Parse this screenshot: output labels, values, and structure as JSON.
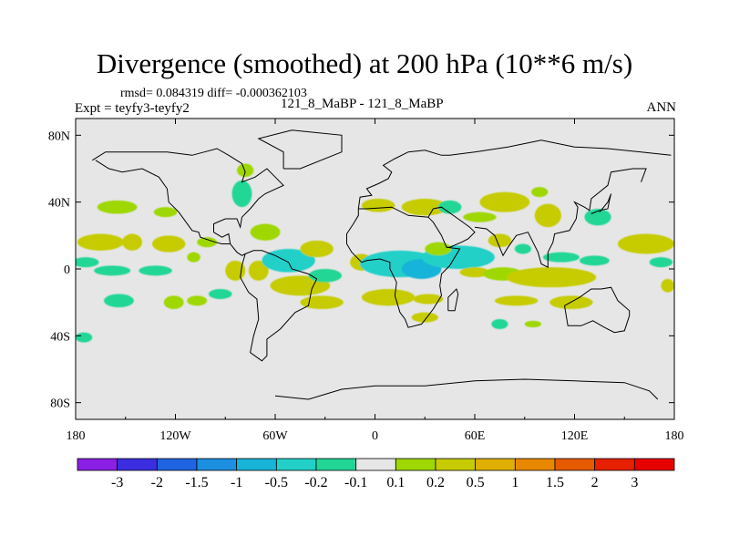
{
  "chart_data": {
    "type": "heatmap",
    "title": "Divergence (smoothed) at 200 hPa (10**6 m/s)",
    "stats": "rmsd= 0.084319 diff= -0.000362103",
    "left_label": "Expt = teyfy3-teyfy2",
    "center_label": "121_8_MaBP - 121_8_MaBP",
    "right_label": "ANN",
    "xlim": [
      -180,
      180
    ],
    "ylim": [
      -90,
      90
    ],
    "x_ticks": [
      {
        "value": -180,
        "label": "180"
      },
      {
        "value": -120,
        "label": "120W"
      },
      {
        "value": -60,
        "label": "60W"
      },
      {
        "value": 0,
        "label": "0"
      },
      {
        "value": 60,
        "label": "60E"
      },
      {
        "value": 120,
        "label": "120E"
      },
      {
        "value": 180,
        "label": "180"
      }
    ],
    "y_ticks": [
      {
        "value": 80,
        "label": "80N"
      },
      {
        "value": 40,
        "label": "40N"
      },
      {
        "value": 0,
        "label": "0"
      },
      {
        "value": -40,
        "label": "40S"
      },
      {
        "value": -80,
        "label": "80S"
      }
    ],
    "colorbar": {
      "labels": [
        "-3",
        "-2",
        "-1.5",
        "-1",
        "-0.5",
        "-0.2",
        "-0.1",
        "0.1",
        "0.2",
        "0.5",
        "1",
        "1.5",
        "2",
        "3"
      ],
      "colors": [
        "#8a1fe6",
        "#3a2ee0",
        "#1f64e0",
        "#1c8fe0",
        "#18b4d8",
        "#22d0c8",
        "#22d696",
        "#e6e6e6",
        "#9ed800",
        "#c6cc00",
        "#e0b000",
        "#e88800",
        "#e65a00",
        "#e62000",
        "#e60000"
      ]
    },
    "blobs": [
      {
        "lon": -155,
        "lat": 37,
        "rlon": 12,
        "rlat": 4,
        "value": 0.15
      },
      {
        "lon": -126,
        "lat": 34,
        "rlon": 7,
        "rlat": 3,
        "value": 0.15
      },
      {
        "lon": -165,
        "lat": 16,
        "rlon": 14,
        "rlat": 5,
        "value": 0.3
      },
      {
        "lon": -146,
        "lat": 16,
        "rlon": 6,
        "rlat": 5,
        "value": 0.3
      },
      {
        "lon": -124,
        "lat": 15,
        "rlon": 10,
        "rlat": 5,
        "value": 0.25
      },
      {
        "lon": -101,
        "lat": 16,
        "rlon": 6,
        "rlat": 3,
        "value": 0.15
      },
      {
        "lon": -174,
        "lat": 4,
        "rlon": 8,
        "rlat": 3,
        "value": -0.15
      },
      {
        "lon": -158,
        "lat": -1,
        "rlon": 11,
        "rlat": 3,
        "value": -0.15
      },
      {
        "lon": -132,
        "lat": -1,
        "rlon": 10,
        "rlat": 3,
        "value": -0.15
      },
      {
        "lon": -109,
        "lat": 7,
        "rlon": 4,
        "rlat": 3,
        "value": 0.15
      },
      {
        "lon": -154,
        "lat": -19,
        "rlon": 9,
        "rlat": 4,
        "value": -0.15
      },
      {
        "lon": -121,
        "lat": -20,
        "rlon": 6,
        "rlat": 4,
        "value": 0.15
      },
      {
        "lon": -107,
        "lat": -19,
        "rlon": 6,
        "rlat": 3,
        "value": 0.15
      },
      {
        "lon": -175,
        "lat": -41,
        "rlon": 5,
        "rlat": 3,
        "value": -0.15
      },
      {
        "lon": -93,
        "lat": -15,
        "rlon": 7,
        "rlat": 3,
        "value": -0.15
      },
      {
        "lon": -84,
        "lat": -1,
        "rlon": 6,
        "rlat": 6,
        "value": 0.3
      },
      {
        "lon": -70,
        "lat": -1,
        "rlon": 6,
        "rlat": 6,
        "value": 0.25
      },
      {
        "lon": -78,
        "lat": 59,
        "rlon": 5,
        "rlat": 4,
        "value": 0.15
      },
      {
        "lon": -80,
        "lat": 45,
        "rlon": 6,
        "rlat": 8,
        "value": -0.15
      },
      {
        "lon": -66,
        "lat": 22,
        "rlon": 9,
        "rlat": 5,
        "value": 0.15
      },
      {
        "lon": -52,
        "lat": 5,
        "rlon": 16,
        "rlat": 7,
        "value": -0.3
      },
      {
        "lon": -35,
        "lat": 12,
        "rlon": 10,
        "rlat": 5,
        "value": 0.25
      },
      {
        "lon": -45,
        "lat": -10,
        "rlon": 18,
        "rlat": 6,
        "value": 0.2
      },
      {
        "lon": -30,
        "lat": -4,
        "rlon": 10,
        "rlat": 4,
        "value": -0.15
      },
      {
        "lon": -32,
        "lat": -20,
        "rlon": 13,
        "rlat": 4,
        "value": 0.25
      },
      {
        "lon": -8,
        "lat": 4,
        "rlon": 7,
        "rlat": 5,
        "value": 0.25
      },
      {
        "lon": 15,
        "lat": 3,
        "rlon": 24,
        "rlat": 8,
        "value": -0.35
      },
      {
        "lon": 28,
        "lat": 0,
        "rlon": 12,
        "rlat": 6,
        "value": -0.6
      },
      {
        "lon": 50,
        "lat": 7,
        "rlon": 22,
        "rlat": 7,
        "value": -0.3
      },
      {
        "lon": 8,
        "lat": -17,
        "rlon": 16,
        "rlat": 5,
        "value": 0.25
      },
      {
        "lon": 32,
        "lat": -18,
        "rlon": 9,
        "rlat": 3,
        "value": 0.2
      },
      {
        "lon": 30,
        "lat": -29,
        "rlon": 8,
        "rlat": 3,
        "value": 0.25
      },
      {
        "lon": 2,
        "lat": 38,
        "rlon": 10,
        "rlat": 4,
        "value": 0.25
      },
      {
        "lon": 30,
        "lat": 37,
        "rlon": 14,
        "rlat": 5,
        "value": 0.25
      },
      {
        "lon": 45,
        "lat": 37,
        "rlon": 7,
        "rlat": 4,
        "value": -0.15
      },
      {
        "lon": 63,
        "lat": 31,
        "rlon": 10,
        "rlat": 3,
        "value": 0.15
      },
      {
        "lon": 38,
        "lat": 12,
        "rlon": 8,
        "rlat": 4,
        "value": 0.15
      },
      {
        "lon": 78,
        "lat": 40,
        "rlon": 15,
        "rlat": 6,
        "value": 0.25
      },
      {
        "lon": 104,
        "lat": 32,
        "rlon": 8,
        "rlat": 7,
        "value": 0.25
      },
      {
        "lon": 99,
        "lat": 46,
        "rlon": 5,
        "rlat": 3,
        "value": 0.15
      },
      {
        "lon": 134,
        "lat": 31,
        "rlon": 8,
        "rlat": 5,
        "value": -0.15
      },
      {
        "lon": 75,
        "lat": 17,
        "rlon": 7,
        "rlat": 4,
        "value": 0.25
      },
      {
        "lon": 89,
        "lat": 12,
        "rlon": 5,
        "rlat": 3,
        "value": -0.15
      },
      {
        "lon": 60,
        "lat": -2,
        "rlon": 9,
        "rlat": 3,
        "value": 0.3
      },
      {
        "lon": 77,
        "lat": -3,
        "rlon": 12,
        "rlat": 4,
        "value": 0.15
      },
      {
        "lon": 106,
        "lat": -5,
        "rlon": 27,
        "rlat": 6,
        "value": 0.3
      },
      {
        "lon": 112,
        "lat": 7,
        "rlon": 11,
        "rlat": 3,
        "value": -0.15
      },
      {
        "lon": 132,
        "lat": 5,
        "rlon": 9,
        "rlat": 3,
        "value": -0.15
      },
      {
        "lon": 163,
        "lat": 15,
        "rlon": 17,
        "rlat": 6,
        "value": 0.4
      },
      {
        "lon": 172,
        "lat": 4,
        "rlon": 7,
        "rlat": 3,
        "value": -0.15
      },
      {
        "lon": 85,
        "lat": -19,
        "rlon": 13,
        "rlat": 3,
        "value": 0.25
      },
      {
        "lon": 118,
        "lat": -20,
        "rlon": 13,
        "rlat": 4,
        "value": 0.25
      },
      {
        "lon": 75,
        "lat": -33,
        "rlon": 5,
        "rlat": 3,
        "value": -0.15
      },
      {
        "lon": 95,
        "lat": -33,
        "rlon": 5,
        "rlat": 2,
        "value": 0.15
      },
      {
        "lon": 176,
        "lat": -10,
        "rlon": 4,
        "rlat": 4,
        "value": 0.25
      }
    ],
    "coastlines": [
      [
        [
          -170,
          65
        ],
        [
          -162,
          70
        ],
        [
          -140,
          70
        ],
        [
          -125,
          70
        ],
        [
          -110,
          68
        ],
        [
          -95,
          72
        ],
        [
          -88,
          68
        ],
        [
          -80,
          63
        ],
        [
          -78,
          58
        ],
        [
          -80,
          52
        ],
        [
          -72,
          55
        ],
        [
          -65,
          60
        ],
        [
          -60,
          55
        ],
        [
          -55,
          50
        ],
        [
          -66,
          45
        ],
        [
          -70,
          42
        ],
        [
          -75,
          36
        ],
        [
          -80,
          31
        ],
        [
          -81,
          25
        ],
        [
          -83,
          30
        ],
        [
          -90,
          30
        ],
        [
          -97,
          27
        ],
        [
          -97,
          22
        ],
        [
          -92,
          19
        ],
        [
          -88,
          21
        ],
        [
          -87,
          15
        ],
        [
          -83,
          10
        ],
        [
          -80,
          8
        ],
        [
          -78,
          9
        ]
      ],
      [
        [
          -78,
          9
        ],
        [
          -80,
          2
        ],
        [
          -81,
          -5
        ],
        [
          -76,
          -14
        ],
        [
          -71,
          -18
        ],
        [
          -70,
          -30
        ],
        [
          -73,
          -40
        ],
        [
          -75,
          -50
        ],
        [
          -68,
          -55
        ],
        [
          -65,
          -52
        ],
        [
          -65,
          -42
        ],
        [
          -57,
          -36
        ],
        [
          -48,
          -26
        ],
        [
          -40,
          -22
        ],
        [
          -38,
          -12
        ],
        [
          -35,
          -6
        ],
        [
          -40,
          -3
        ],
        [
          -50,
          0
        ],
        [
          -52,
          4
        ],
        [
          -60,
          8
        ],
        [
          -68,
          11
        ],
        [
          -73,
          11
        ],
        [
          -78,
          9
        ]
      ],
      [
        [
          -168,
          65
        ],
        [
          -160,
          60
        ],
        [
          -152,
          58
        ],
        [
          -140,
          60
        ],
        [
          -130,
          55
        ],
        [
          -125,
          48
        ],
        [
          -124,
          40
        ],
        [
          -118,
          34
        ],
        [
          -110,
          23
        ],
        [
          -106,
          22
        ],
        [
          -105,
          19
        ],
        [
          -96,
          16
        ],
        [
          -92,
          15
        ],
        [
          -87,
          15
        ]
      ],
      [
        [
          -55,
          60
        ],
        [
          -45,
          60
        ],
        [
          -20,
          70
        ],
        [
          -20,
          80
        ],
        [
          -50,
          83
        ],
        [
          -70,
          78
        ],
        [
          -55,
          70
        ],
        [
          -55,
          60
        ]
      ],
      [
        [
          -10,
          36
        ],
        [
          -9,
          43
        ],
        [
          -2,
          44
        ],
        [
          -5,
          48
        ],
        [
          2,
          51
        ],
        [
          8,
          54
        ],
        [
          10,
          58
        ],
        [
          5,
          62
        ],
        [
          12,
          66
        ],
        [
          20,
          70
        ],
        [
          30,
          71
        ],
        [
          40,
          68
        ],
        [
          45,
          68
        ],
        [
          60,
          70
        ],
        [
          80,
          73
        ],
        [
          100,
          77
        ],
        [
          120,
          73
        ],
        [
          140,
          72
        ],
        [
          160,
          70
        ],
        [
          178,
          68
        ]
      ],
      [
        [
          -10,
          36
        ],
        [
          -5,
          36
        ],
        [
          10,
          37
        ],
        [
          20,
          32
        ],
        [
          32,
          31
        ],
        [
          35,
          28
        ],
        [
          40,
          20
        ],
        [
          43,
          13
        ],
        [
          51,
          12
        ],
        [
          45,
          2
        ],
        [
          40,
          -3
        ],
        [
          39,
          -10
        ],
        [
          40,
          -16
        ],
        [
          35,
          -24
        ],
        [
          32,
          -28
        ],
        [
          28,
          -33
        ],
        [
          20,
          -35
        ],
        [
          18,
          -30
        ],
        [
          15,
          -26
        ],
        [
          12,
          -16
        ],
        [
          13,
          -8
        ],
        [
          9,
          0
        ],
        [
          9,
          4
        ],
        [
          3,
          6
        ],
        [
          -5,
          5
        ],
        [
          -8,
          4
        ],
        [
          -14,
          10
        ],
        [
          -17,
          15
        ],
        [
          -17,
          21
        ],
        [
          -13,
          27
        ],
        [
          -10,
          32
        ],
        [
          -10,
          36
        ]
      ],
      [
        [
          32,
          31
        ],
        [
          35,
          36
        ],
        [
          40,
          37
        ],
        [
          50,
          30
        ],
        [
          57,
          25
        ],
        [
          60,
          22
        ],
        [
          56,
          18
        ],
        [
          52,
          16
        ],
        [
          45,
          13
        ],
        [
          43,
          13
        ]
      ],
      [
        [
          60,
          25
        ],
        [
          67,
          24
        ],
        [
          72,
          20
        ],
        [
          77,
          8
        ],
        [
          80,
          13
        ],
        [
          85,
          20
        ],
        [
          92,
          22
        ],
        [
          95,
          16
        ],
        [
          98,
          10
        ],
        [
          100,
          3
        ],
        [
          104,
          1
        ],
        [
          104,
          10
        ],
        [
          107,
          16
        ],
        [
          108,
          21
        ],
        [
          117,
          23
        ],
        [
          121,
          30
        ],
        [
          122,
          37
        ],
        [
          120,
          40
        ],
        [
          126,
          37
        ],
        [
          129,
          35
        ],
        [
          130,
          42
        ],
        [
          140,
          50
        ],
        [
          142,
          58
        ],
        [
          155,
          60
        ],
        [
          163,
          60
        ],
        [
          160,
          52
        ]
      ],
      [
        [
          114,
          -22
        ],
        [
          116,
          -34
        ],
        [
          124,
          -34
        ],
        [
          131,
          -31
        ],
        [
          138,
          -35
        ],
        [
          144,
          -38
        ],
        [
          150,
          -37
        ],
        [
          153,
          -28
        ],
        [
          153,
          -25
        ],
        [
          146,
          -19
        ],
        [
          142,
          -11
        ],
        [
          136,
          -12
        ],
        [
          130,
          -12
        ],
        [
          123,
          -17
        ],
        [
          114,
          -22
        ]
      ],
      [
        [
          -60,
          -76
        ],
        [
          -40,
          -78
        ],
        [
          -20,
          -72
        ],
        [
          0,
          -70
        ],
        [
          30,
          -70
        ],
        [
          60,
          -67
        ],
        [
          90,
          -66
        ],
        [
          120,
          -67
        ],
        [
          150,
          -68
        ],
        [
          165,
          -73
        ],
        [
          170,
          -78
        ]
      ],
      [
        [
          44,
          -25
        ],
        [
          48,
          -25
        ],
        [
          50,
          -15
        ],
        [
          49,
          -12
        ],
        [
          44,
          -17
        ],
        [
          44,
          -25
        ]
      ],
      [
        [
          130,
          33
        ],
        [
          135,
          35
        ],
        [
          140,
          36
        ],
        [
          141,
          41
        ],
        [
          142,
          45
        ],
        [
          140,
          40
        ],
        [
          135,
          34
        ]
      ]
    ]
  }
}
